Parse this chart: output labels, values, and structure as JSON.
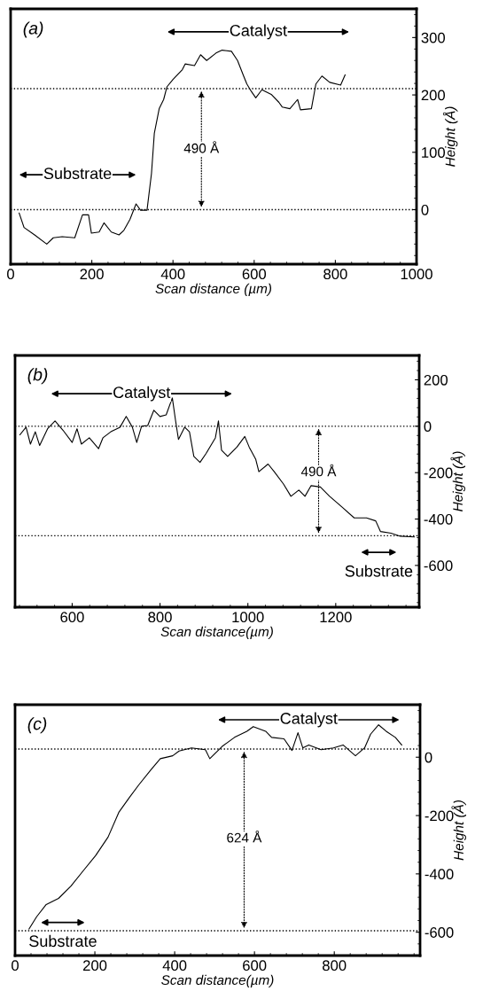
{
  "chart_data": [
    {
      "type": "line",
      "xlabel": "Scan distance (µm)",
      "ylabel": "Height (Å)",
      "xlim": [
        0,
        1000
      ],
      "ylim": [
        -95,
        350
      ],
      "xticks": [
        0,
        200,
        400,
        600,
        800,
        1000
      ],
      "yticks": [
        0,
        100,
        200,
        300
      ],
      "grid": false,
      "legend": false,
      "series": [
        {
          "color": "#000000",
          "x": [
            21,
            33,
            59,
            89,
            105,
            127,
            158,
            177,
            192,
            199,
            218,
            230,
            248,
            267,
            279,
            294,
            309,
            320,
            336,
            347,
            354,
            366,
            377,
            385,
            400,
            423,
            430,
            453,
            468,
            483,
            506,
            521,
            544,
            559,
            574,
            582,
            593,
            604,
            619,
            642,
            661,
            669,
            688,
            707,
            714,
            741,
            752,
            767,
            786,
            813,
            824
          ],
          "values": [
            -6,
            -31,
            -44,
            -60,
            -49,
            -47,
            -49,
            -9,
            -9,
            -41,
            -39,
            -23,
            -39,
            -44,
            -36,
            -17,
            10,
            -1,
            -1,
            63,
            133,
            176,
            192,
            214,
            227,
            244,
            254,
            251,
            270,
            260,
            273,
            278,
            276,
            260,
            233,
            219,
            206,
            195,
            209,
            201,
            187,
            179,
            176,
            192,
            174,
            176,
            219,
            233,
            222,
            217,
            235
          ]
        }
      ],
      "ref_lines": [
        {
          "axis": "y",
          "value": 211,
          "color": "#000000",
          "line_style": "dotted"
        },
        {
          "axis": "y",
          "value": 0,
          "color": "#000000",
          "line_style": "dotted"
        }
      ],
      "annotations": [
        "(a)",
        {
          "text": "490 Å",
          "x": 470,
          "y": 105
        },
        "Catalyst",
        "Substrate"
      ]
    },
    {
      "type": "line",
      "xlabel": "Scan distance(µm)",
      "ylabel": "Height (Å)",
      "xlim": [
        470,
        1390
      ],
      "ylim": [
        -780,
        305
      ],
      "xticks": [
        600,
        800,
        1000,
        1200
      ],
      "yticks": [
        -600,
        -400,
        -200,
        0,
        200
      ],
      "grid": false,
      "legend": false,
      "series": [
        {
          "color": "#000000",
          "x": [
            481,
            495,
            505,
            516,
            526,
            544,
            561,
            579,
            600,
            611,
            621,
            639,
            660,
            670,
            688,
            709,
            723,
            737,
            747,
            758,
            772,
            786,
            800,
            814,
            828,
            835,
            842,
            856,
            867,
            877,
            891,
            905,
            926,
            933,
            940,
            954,
            975,
            993,
            1003,
            1018,
            1025,
            1046,
            1060,
            1081,
            1098,
            1116,
            1130,
            1144,
            1165,
            1186,
            1214,
            1242,
            1270,
            1291,
            1302,
            1326,
            1347,
            1379
          ],
          "values": [
            -37,
            -4,
            -77,
            -24,
            -83,
            -11,
            23,
            -17,
            -70,
            -11,
            -77,
            -50,
            -97,
            -50,
            -24,
            -4,
            42,
            -4,
            -70,
            0,
            3,
            69,
            42,
            49,
            122,
            29,
            -57,
            -4,
            -24,
            -130,
            -156,
            -117,
            -50,
            23,
            -103,
            -130,
            -90,
            -44,
            -90,
            -143,
            -196,
            -163,
            -196,
            -249,
            -302,
            -275,
            -302,
            -256,
            -262,
            -302,
            -348,
            -395,
            -395,
            -408,
            -454,
            -461,
            -474,
            -477
          ]
        }
      ],
      "ref_lines": [
        {
          "axis": "y",
          "value": 0,
          "color": "#000000",
          "line_style": "dotted"
        },
        {
          "axis": "y",
          "value": -472,
          "color": "#000000",
          "line_style": "dotted"
        }
      ],
      "annotations": [
        "(b)",
        {
          "text": "490 Å",
          "x": 1161,
          "y": -200
        },
        "Catalyst",
        "Substrate"
      ]
    },
    {
      "type": "line",
      "xlabel": "Scan distance(µm)",
      "ylabel": "Height (Å)",
      "xlim": [
        0,
        1015
      ],
      "ylim": [
        -680,
        180
      ],
      "xticks": [
        0,
        200,
        400,
        600,
        800
      ],
      "yticks": [
        -600,
        -400,
        -200,
        0
      ],
      "grid": false,
      "legend": false,
      "series": [
        {
          "color": "#000000",
          "x": [
            35,
            54,
            78,
            109,
            140,
            171,
            202,
            233,
            260,
            287,
            310,
            341,
            364,
            395,
            411,
            442,
            477,
            488,
            519,
            550,
            581,
            597,
            628,
            643,
            674,
            694,
            709,
            721,
            736,
            767,
            798,
            822,
            853,
            876,
            891,
            911,
            930,
            953,
            969
          ],
          "values": [
            -589,
            -547,
            -505,
            -484,
            -442,
            -389,
            -337,
            -274,
            -189,
            -137,
            -95,
            -42,
            -5,
            5,
            21,
            32,
            26,
            -5,
            37,
            68,
            89,
            105,
            89,
            68,
            63,
            23,
            84,
            32,
            42,
            26,
            32,
            42,
            5,
            32,
            79,
            111,
            89,
            68,
            42
          ]
        }
      ],
      "ref_lines": [
        {
          "axis": "y",
          "value": 28,
          "color": "#000000",
          "line_style": "dotted"
        },
        {
          "axis": "y",
          "value": -595,
          "color": "#000000",
          "line_style": "dotted"
        }
      ],
      "annotations": [
        "(c)",
        {
          "text": "624 Å",
          "x": 574,
          "y": -280
        },
        "Catalyst",
        "Substrate"
      ]
    }
  ]
}
